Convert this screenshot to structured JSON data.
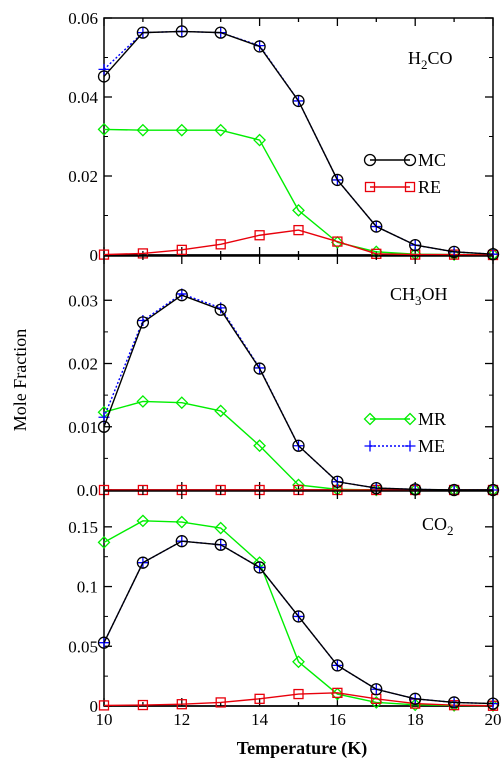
{
  "chart_data": {
    "type": "line",
    "xlabel": "Temperature (K)",
    "ylabel": "Mole Fraction",
    "xlim": [
      10,
      20
    ],
    "x_ticks": [
      10,
      12,
      14,
      16,
      18,
      20
    ],
    "x": [
      10,
      11,
      12,
      13,
      14,
      15,
      16,
      17,
      18,
      19,
      20
    ],
    "legend": [
      {
        "id": "MC",
        "label": "MC",
        "color": "#000000",
        "marker": "circle",
        "dash": "solid"
      },
      {
        "id": "RE",
        "label": "RE",
        "color": "#e8000b",
        "marker": "square",
        "dash": "solid"
      },
      {
        "id": "MR",
        "label": "MR",
        "color": "#00ee00",
        "marker": "diamond",
        "dash": "solid"
      },
      {
        "id": "ME",
        "label": "ME",
        "color": "#0000ff",
        "marker": "plus",
        "dash": "dotted"
      }
    ],
    "panels": [
      {
        "id": "h2co",
        "label_main": "H",
        "label_sub": "2",
        "label_rest": "CO",
        "ylim": [
          0,
          0.06
        ],
        "y_ticks": [
          0,
          0.02,
          0.04,
          0.06
        ],
        "y_tick_labels": [
          "0",
          "0.02",
          "0.04",
          "0.06"
        ],
        "series": [
          {
            "id": "MR",
            "values": [
              0.0318,
              0.0316,
              0.0316,
              0.0316,
              0.0291,
              0.0113,
              0.0032,
              0.0008,
              0.0002,
              0.0001,
              0.0001
            ]
          },
          {
            "id": "RE",
            "values": [
              0.0001,
              0.0004,
              0.0013,
              0.0027,
              0.005,
              0.0063,
              0.0034,
              0.0003,
              0.0001,
              0.0001,
              0.0
            ]
          },
          {
            "id": "ME",
            "values": [
              0.047,
              0.0563,
              0.0566,
              0.0563,
              0.053,
              0.039,
              0.019,
              0.0072,
              0.0025,
              0.0008,
              0.0002
            ]
          },
          {
            "id": "MC",
            "values": [
              0.0452,
              0.0563,
              0.0566,
              0.0563,
              0.0528,
              0.039,
              0.019,
              0.0072,
              0.0025,
              0.0008,
              0.0002
            ]
          }
        ]
      },
      {
        "id": "ch3oh",
        "label_main": "CH",
        "label_sub": "3",
        "label_rest": "OH",
        "ylim": [
          0,
          0.037
        ],
        "y_ticks": [
          0,
          0.01,
          0.02,
          0.03
        ],
        "y_tick_labels": [
          "0.0",
          "0.01",
          "0.02",
          "0.03"
        ],
        "series": [
          {
            "id": "MR",
            "values": [
              0.0123,
              0.014,
              0.0138,
              0.0125,
              0.007,
              0.0008,
              0.0001,
              0.0,
              0.0,
              0.0,
              0.0
            ]
          },
          {
            "id": "RE",
            "values": [
              0.0,
              0.0,
              0.0,
              0.0,
              0.0,
              0.0,
              0.0,
              0.0,
              0.0,
              0.0,
              0.0
            ]
          },
          {
            "id": "ME",
            "values": [
              0.0115,
              0.0268,
              0.031,
              0.0288,
              0.0193,
              0.007,
              0.0013,
              0.0003,
              0.0001,
              0.0,
              0.0
            ]
          },
          {
            "id": "MC",
            "values": [
              0.01,
              0.0265,
              0.0308,
              0.0285,
              0.0192,
              0.007,
              0.0013,
              0.0003,
              0.0001,
              0.0,
              0.0
            ]
          }
        ]
      },
      {
        "id": "co2",
        "label_main": "CO",
        "label_sub": "2",
        "label_rest": "",
        "ylim": [
          0,
          0.18
        ],
        "y_ticks": [
          0,
          0.05,
          0.1,
          0.15
        ],
        "y_tick_labels": [
          "0",
          "0.05",
          "0.1",
          "0.15"
        ],
        "series": [
          {
            "id": "MR",
            "values": [
              0.137,
              0.155,
              0.154,
              0.149,
              0.12,
              0.037,
              0.01,
              0.003,
              0.001,
              0.0005,
              0.0003
            ]
          },
          {
            "id": "RE",
            "values": [
              0.0005,
              0.0008,
              0.0015,
              0.003,
              0.006,
              0.01,
              0.011,
              0.006,
              0.002,
              0.0007,
              0.0002
            ]
          },
          {
            "id": "ME",
            "values": [
              0.053,
              0.12,
              0.138,
              0.135,
              0.116,
              0.075,
              0.034,
              0.014,
              0.006,
              0.003,
              0.002
            ]
          },
          {
            "id": "MC",
            "values": [
              0.053,
              0.12,
              0.138,
              0.135,
              0.116,
              0.075,
              0.034,
              0.014,
              0.006,
              0.003,
              0.002
            ]
          }
        ]
      }
    ]
  }
}
